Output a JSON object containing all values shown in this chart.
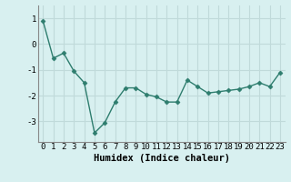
{
  "x": [
    0,
    1,
    2,
    3,
    4,
    5,
    6,
    7,
    8,
    9,
    10,
    11,
    12,
    13,
    14,
    15,
    16,
    17,
    18,
    19,
    20,
    21,
    22,
    23
  ],
  "y": [
    0.9,
    -0.55,
    -0.35,
    -1.05,
    -1.5,
    -3.45,
    -3.05,
    -2.25,
    -1.7,
    -1.7,
    -1.95,
    -2.05,
    -2.25,
    -2.25,
    -1.4,
    -1.65,
    -1.9,
    -1.85,
    -1.8,
    -1.75,
    -1.65,
    -1.5,
    -1.65,
    -1.1
  ],
  "xlabel": "Humidex (Indice chaleur)",
  "ylim": [
    -3.8,
    1.5
  ],
  "xlim": [
    -0.5,
    23.5
  ],
  "yticks": [
    1,
    0,
    -1,
    -2,
    -3
  ],
  "xticks": [
    0,
    1,
    2,
    3,
    4,
    5,
    6,
    7,
    8,
    9,
    10,
    11,
    12,
    13,
    14,
    15,
    16,
    17,
    18,
    19,
    20,
    21,
    22,
    23
  ],
  "line_color": "#2e7d6e",
  "marker": "D",
  "marker_size": 2.5,
  "bg_color": "#d8f0f0",
  "grid_color": "#c0dada",
  "xlabel_fontsize": 7.5,
  "tick_fontsize": 6.5
}
